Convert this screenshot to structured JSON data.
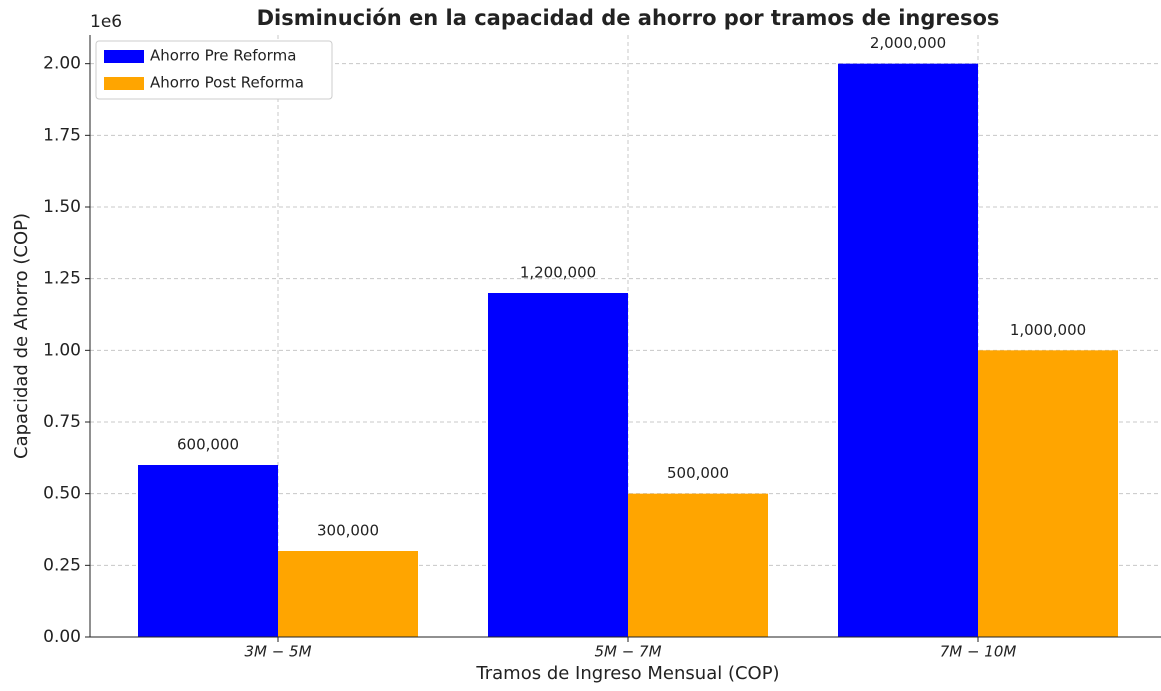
{
  "chart_data": {
    "type": "bar",
    "title": "Disminución en la capacidad de ahorro por tramos de ingresos",
    "x_label": "Tramos de Ingreso Mensual (COP)",
    "y_label": "Capacidad de Ahorro (COP)",
    "y_offset_label": "1e6",
    "categories": [
      "3M − 5M",
      "5M − 7M",
      "7M − 10M"
    ],
    "series": [
      {
        "name": "Ahorro Pre Reforma",
        "color": "#0000ff",
        "values": [
          600000,
          1200000,
          2000000
        ],
        "value_labels": [
          "600,000",
          "1,200,000",
          "2,000,000"
        ]
      },
      {
        "name": "Ahorro Post Reforma",
        "color": "#ffa500",
        "values": [
          300000,
          500000,
          1000000
        ],
        "value_labels": [
          "300,000",
          "500,000",
          "1,000,000"
        ]
      }
    ],
    "ylim": [
      0,
      2100000
    ],
    "yticks": [
      {
        "value": 0,
        "label": "0.00"
      },
      {
        "value": 250000,
        "label": "0.25"
      },
      {
        "value": 500000,
        "label": "0.50"
      },
      {
        "value": 750000,
        "label": "0.75"
      },
      {
        "value": 1000000,
        "label": "1.00"
      },
      {
        "value": 1250000,
        "label": "1.25"
      },
      {
        "value": 1500000,
        "label": "1.50"
      },
      {
        "value": 1750000,
        "label": "1.75"
      },
      {
        "value": 2000000,
        "label": "2.00"
      }
    ],
    "grid": true,
    "legend": "upper left"
  }
}
